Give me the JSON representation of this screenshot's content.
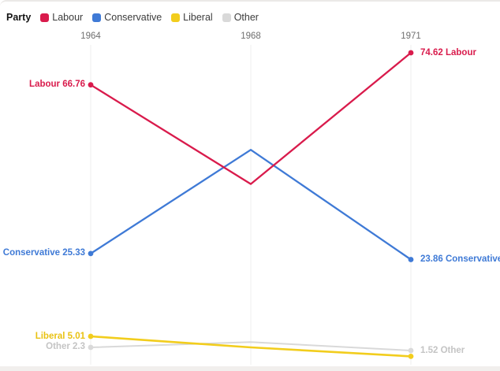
{
  "legend": {
    "title": "Party",
    "items": [
      {
        "label": "Labour",
        "color_key": "labour"
      },
      {
        "label": "Conservative",
        "color_key": "conservative"
      },
      {
        "label": "Liberal",
        "color_key": "liberal"
      },
      {
        "label": "Other",
        "color_key": "other"
      }
    ]
  },
  "axis": {
    "years": [
      "1964",
      "1968",
      "1971"
    ]
  },
  "point_labels": {
    "labour_start": "Labour 66.76",
    "labour_end": "74.62 Labour",
    "conservative_start": "Conservative 25.33",
    "conservative_end": "23.86 Conservative",
    "liberal_start": "Liberal 5.01",
    "other_start": "Other 2.3",
    "other_end": "1.52 Other"
  },
  "colors": {
    "labour": "#d91b4c",
    "conservative": "#3f7ad6",
    "liberal": "#f2cd1d",
    "liberal_label": "#e9c213",
    "other": "#d9d9d9",
    "other_label": "#c4c4c4",
    "grid": "#efefef",
    "axis_text": "#6f6f6f"
  },
  "chart_data": {
    "type": "line",
    "title": "",
    "x": [
      1964,
      1968,
      1971
    ],
    "xlabel": "",
    "ylabel": "",
    "ylim": [
      0,
      80
    ],
    "grid": "vertical-only",
    "legend_position": "top-left",
    "series": [
      {
        "name": "Labour",
        "color_key": "labour",
        "values": [
          66.76,
          42.4,
          74.62
        ]
      },
      {
        "name": "Conservative",
        "color_key": "conservative",
        "values": [
          25.33,
          50.8,
          23.86
        ]
      },
      {
        "name": "Liberal",
        "color_key": "liberal",
        "values": [
          5.01,
          2.3,
          0.1
        ]
      },
      {
        "name": "Other",
        "color_key": "other",
        "values": [
          2.3,
          3.6,
          1.52
        ]
      }
    ]
  }
}
